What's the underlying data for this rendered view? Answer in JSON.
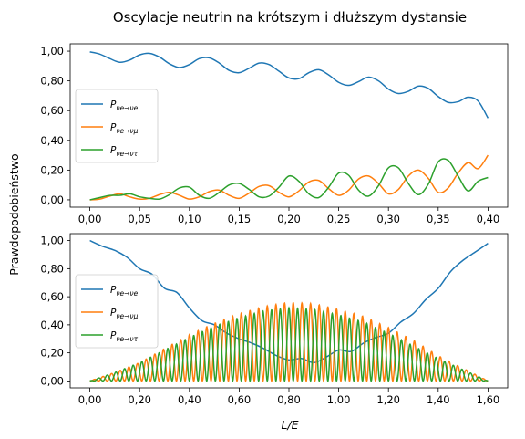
{
  "figure": {
    "title": "Oscylacje neutrin na krótszym i dłuższym dystansie",
    "ylabel": "Prawdopodobieństwo",
    "xlabel": "L/E"
  },
  "colors": {
    "series_ee": "#1f77b4",
    "series_emu": "#ff7f0e",
    "series_etau": "#2ca02c"
  },
  "chart_data": [
    {
      "type": "line",
      "xlim": [
        0,
        0.4
      ],
      "ylim": [
        0,
        1
      ],
      "grid": false,
      "legend_position": "center-left",
      "x_ticks": [
        0,
        0.05,
        0.1,
        0.15,
        0.2,
        0.25,
        0.3,
        0.35,
        0.4
      ],
      "x_tick_labels": [
        "0,00",
        "0,05",
        "0,10",
        "0,15",
        "0,20",
        "0,25",
        "0,30",
        "0,35",
        "0,40"
      ],
      "y_ticks": [
        0,
        0.2,
        0.4,
        0.6,
        0.8,
        1.0
      ],
      "y_tick_labels": [
        "0,00",
        "0,20",
        "0,40",
        "0,60",
        "0,80",
        "1,00"
      ],
      "series": [
        {
          "key": "ee",
          "name_base": "P",
          "name_sub": "νe→νe",
          "x": [
            0,
            0.01,
            0.02,
            0.03,
            0.04,
            0.05,
            0.06,
            0.07,
            0.08,
            0.09,
            0.1,
            0.11,
            0.12,
            0.13,
            0.14,
            0.15,
            0.16,
            0.17,
            0.18,
            0.19,
            0.2,
            0.21,
            0.22,
            0.23,
            0.24,
            0.25,
            0.26,
            0.27,
            0.28,
            0.29,
            0.3,
            0.31,
            0.32,
            0.33,
            0.34,
            0.35,
            0.36,
            0.37,
            0.38,
            0.39,
            0.4
          ],
          "y": [
            0.995,
            0.98,
            0.95,
            0.925,
            0.94,
            0.975,
            0.985,
            0.96,
            0.915,
            0.89,
            0.91,
            0.95,
            0.955,
            0.92,
            0.87,
            0.855,
            0.885,
            0.92,
            0.91,
            0.865,
            0.82,
            0.815,
            0.855,
            0.875,
            0.84,
            0.79,
            0.77,
            0.795,
            0.825,
            0.8,
            0.745,
            0.715,
            0.73,
            0.765,
            0.75,
            0.695,
            0.655,
            0.66,
            0.69,
            0.665,
            0.55
          ]
        },
        {
          "key": "emu",
          "name_base": "P",
          "name_sub": "νe→νμ",
          "x": [
            0,
            0.01,
            0.02,
            0.03,
            0.04,
            0.05,
            0.06,
            0.07,
            0.08,
            0.09,
            0.1,
            0.11,
            0.12,
            0.13,
            0.14,
            0.15,
            0.16,
            0.17,
            0.18,
            0.19,
            0.2,
            0.21,
            0.22,
            0.23,
            0.24,
            0.25,
            0.26,
            0.27,
            0.28,
            0.29,
            0.3,
            0.31,
            0.32,
            0.33,
            0.34,
            0.35,
            0.36,
            0.37,
            0.38,
            0.39,
            0.4
          ],
          "y": [
            0.0,
            0.005,
            0.025,
            0.04,
            0.02,
            0.005,
            0.01,
            0.035,
            0.05,
            0.03,
            0.005,
            0.02,
            0.055,
            0.065,
            0.03,
            0.01,
            0.045,
            0.09,
            0.095,
            0.05,
            0.02,
            0.06,
            0.12,
            0.13,
            0.075,
            0.03,
            0.065,
            0.14,
            0.16,
            0.11,
            0.04,
            0.07,
            0.16,
            0.2,
            0.145,
            0.05,
            0.08,
            0.18,
            0.25,
            0.21,
            0.3
          ]
        },
        {
          "key": "etau",
          "name_base": "P",
          "name_sub": "νe→ντ",
          "x": [
            0,
            0.01,
            0.02,
            0.03,
            0.04,
            0.05,
            0.06,
            0.07,
            0.08,
            0.09,
            0.1,
            0.11,
            0.12,
            0.13,
            0.14,
            0.15,
            0.16,
            0.17,
            0.18,
            0.19,
            0.2,
            0.21,
            0.22,
            0.23,
            0.24,
            0.25,
            0.26,
            0.27,
            0.28,
            0.29,
            0.3,
            0.31,
            0.32,
            0.33,
            0.34,
            0.35,
            0.36,
            0.37,
            0.38,
            0.39,
            0.4
          ],
          "y": [
            0.0,
            0.015,
            0.03,
            0.03,
            0.04,
            0.02,
            0.01,
            0.005,
            0.035,
            0.08,
            0.085,
            0.03,
            0.01,
            0.05,
            0.1,
            0.11,
            0.07,
            0.02,
            0.025,
            0.085,
            0.16,
            0.125,
            0.04,
            0.015,
            0.085,
            0.18,
            0.165,
            0.065,
            0.025,
            0.095,
            0.215,
            0.215,
            0.11,
            0.035,
            0.105,
            0.255,
            0.265,
            0.16,
            0.06,
            0.125,
            0.15
          ]
        }
      ]
    },
    {
      "type": "line",
      "xlim": [
        0,
        1.6
      ],
      "ylim": [
        0,
        1
      ],
      "grid": false,
      "legend_position": "center-left",
      "x_ticks": [
        0,
        0.2,
        0.4,
        0.6,
        0.8,
        1.0,
        1.2,
        1.4,
        1.6
      ],
      "x_tick_labels": [
        "0,00",
        "0,20",
        "0,40",
        "0,60",
        "0,80",
        "1,00",
        "1,20",
        "1,40",
        "1,60"
      ],
      "y_ticks": [
        0,
        0.2,
        0.4,
        0.6,
        0.8,
        1.0
      ],
      "y_tick_labels": [
        "0,00",
        "0,20",
        "0,40",
        "0,60",
        "0,80",
        "1,00"
      ],
      "series": [
        {
          "key": "ee",
          "name_base": "P",
          "name_sub": "νe→νe",
          "x": [
            0,
            0.05,
            0.1,
            0.15,
            0.2,
            0.25,
            0.3,
            0.35,
            0.4,
            0.45,
            0.5,
            0.55,
            0.6,
            0.65,
            0.7,
            0.75,
            0.8,
            0.85,
            0.9,
            0.95,
            1.0,
            1.05,
            1.1,
            1.15,
            1.2,
            1.25,
            1.3,
            1.35,
            1.4,
            1.45,
            1.5,
            1.55,
            1.6
          ],
          "y": [
            1.0,
            0.96,
            0.93,
            0.88,
            0.8,
            0.76,
            0.66,
            0.63,
            0.52,
            0.43,
            0.4,
            0.34,
            0.3,
            0.27,
            0.23,
            0.18,
            0.15,
            0.16,
            0.13,
            0.17,
            0.22,
            0.21,
            0.27,
            0.31,
            0.34,
            0.42,
            0.48,
            0.58,
            0.66,
            0.78,
            0.86,
            0.92,
            0.98
          ]
        },
        {
          "key": "emu",
          "name_base": "P",
          "name_sub": "νe→νμ",
          "x": [
            0,
            0.1,
            0.2,
            0.3,
            0.4,
            0.5,
            0.6,
            0.7,
            0.8,
            0.9,
            1.0,
            1.1,
            1.2,
            1.3,
            1.4,
            1.5,
            1.6
          ],
          "y": [
            0.0,
            0.06,
            0.13,
            0.23,
            0.33,
            0.41,
            0.48,
            0.53,
            0.56,
            0.55,
            0.51,
            0.46,
            0.38,
            0.29,
            0.18,
            0.09,
            0.0
          ]
        },
        {
          "key": "etau",
          "name_base": "P",
          "name_sub": "νe→ντ",
          "x": [
            0,
            0.1,
            0.2,
            0.3,
            0.4,
            0.5,
            0.6,
            0.7,
            0.8,
            0.9,
            1.0,
            1.1,
            1.2,
            1.3,
            1.4,
            1.5,
            1.6
          ],
          "y": [
            0.0,
            0.06,
            0.13,
            0.22,
            0.31,
            0.39,
            0.45,
            0.5,
            0.52,
            0.51,
            0.47,
            0.42,
            0.34,
            0.25,
            0.16,
            0.08,
            0.0
          ]
        }
      ]
    }
  ]
}
